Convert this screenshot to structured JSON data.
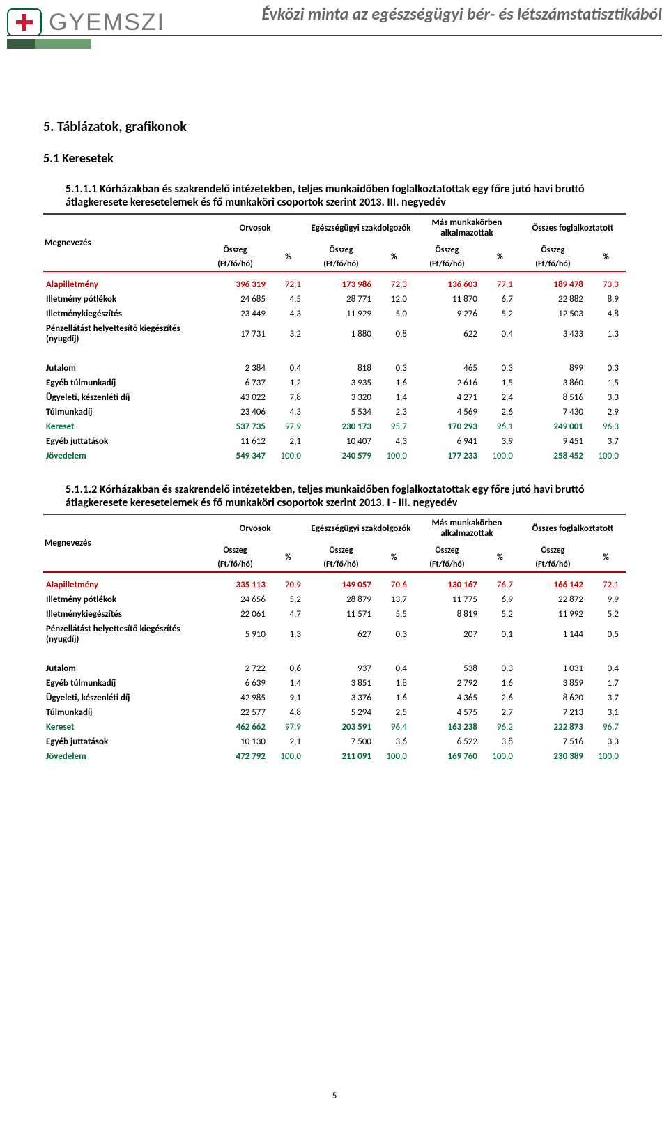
{
  "colors": {
    "highlight_red": "#c00000",
    "highlight_green": "#006838",
    "text_black": "#000000"
  },
  "header": {
    "logo_text": "GYEMSZI",
    "title": "Évközi minta az egészségügyi bér- és létszámstatisztikából"
  },
  "section_title": "5. Táblázatok, grafikonok",
  "sub_title": "5.1 Keresetek",
  "page_number": "5",
  "labels": {
    "megnevezes": "Megnevezés",
    "osszeg_unit": "(Ft/fő/hó)",
    "osszeg": "Összeg",
    "pct": "%",
    "col_orvosok": "Orvosok",
    "col_szakdolgozok": "Egészségügyi szakdolgozók",
    "col_mas": "Más munkakörben alkalmazottak",
    "col_osszes": "Összes foglalkoztatott"
  },
  "tables": [
    {
      "caption": "5.1.1.1 Kórházakban és szakrendelő intézetekben, teljes munkaidőben foglalkoztatottak egy főre jutó havi bruttó átlagkeresete keresetelemek és fő munkaköri csoportok szerint 2013. III. negyedév",
      "row_labels": [
        "Alapilletmény",
        "Illetmény pótlékok",
        "Illetménykiegészítés",
        "Pénzellátást helyettesítő kiegészítés (nyugdíj)",
        "Jutalom",
        "Egyéb túlmunkadíj",
        "Ügyeleti, készenléti díj",
        "Túlmunkadíj",
        "Kereset",
        "Egyéb juttatások",
        "Jövedelem"
      ],
      "highlight": [
        "red",
        "",
        "",
        "",
        "",
        "",
        "",
        "",
        "green",
        "",
        "green"
      ],
      "group1_first": [
        0
      ],
      "group1_last": [
        3
      ],
      "data": [
        [
          "396 319",
          "72,1",
          "173 986",
          "72,3",
          "136 603",
          "77,1",
          "189 478",
          "73,3"
        ],
        [
          "24 685",
          "4,5",
          "28 771",
          "12,0",
          "11 870",
          "6,7",
          "22 882",
          "8,9"
        ],
        [
          "23 449",
          "4,3",
          "11 929",
          "5,0",
          "9 276",
          "5,2",
          "12 503",
          "4,8"
        ],
        [
          "17 731",
          "3,2",
          "1 880",
          "0,8",
          "622",
          "0,4",
          "3 433",
          "1,3"
        ],
        [
          "2 384",
          "0,4",
          "818",
          "0,3",
          "465",
          "0,3",
          "899",
          "0,3"
        ],
        [
          "6 737",
          "1,2",
          "3 935",
          "1,6",
          "2 616",
          "1,5",
          "3 860",
          "1,5"
        ],
        [
          "43 022",
          "7,8",
          "3 320",
          "1,4",
          "4 271",
          "2,4",
          "8 516",
          "3,3"
        ],
        [
          "23 406",
          "4,3",
          "5 534",
          "2,3",
          "4 569",
          "2,6",
          "7 430",
          "2,9"
        ],
        [
          "537 735",
          "97,9",
          "230 173",
          "95,7",
          "170 293",
          "96,1",
          "249 001",
          "96,3"
        ],
        [
          "11 612",
          "2,1",
          "10 407",
          "4,3",
          "6 941",
          "3,9",
          "9 451",
          "3,7"
        ],
        [
          "549 347",
          "100,0",
          "240 579",
          "100,0",
          "177 233",
          "100,0",
          "258 452",
          "100,0"
        ]
      ]
    },
    {
      "caption": "5.1.1.2 Kórházakban és szakrendelő intézetekben, teljes munkaidőben foglalkoztatottak egy főre jutó havi bruttó átlagkeresete keresetelemek és fő munkaköri csoportok szerint 2013. I - III. negyedév",
      "row_labels": [
        "Alapilletmény",
        "Illetmény pótlékok",
        "Illetménykiegészítés",
        "Pénzellátást helyettesítő kiegészítés (nyugdíj)",
        "Jutalom",
        "Egyéb túlmunkadíj",
        "Ügyeleti, készenléti díj",
        "Túlmunkadíj",
        "Kereset",
        "Egyéb juttatások",
        "Jövedelem"
      ],
      "highlight": [
        "red",
        "",
        "",
        "",
        "",
        "",
        "",
        "",
        "green",
        "",
        "green"
      ],
      "group1_first": [
        0
      ],
      "group1_last": [
        3
      ],
      "data": [
        [
          "335 113",
          "70,9",
          "149 057",
          "70,6",
          "130 167",
          "76,7",
          "166 142",
          "72,1"
        ],
        [
          "24 656",
          "5,2",
          "28 879",
          "13,7",
          "11 775",
          "6,9",
          "22 872",
          "9,9"
        ],
        [
          "22 061",
          "4,7",
          "11 571",
          "5,5",
          "8 819",
          "5,2",
          "11 992",
          "5,2"
        ],
        [
          "5 910",
          "1,3",
          "627",
          "0,3",
          "207",
          "0,1",
          "1 144",
          "0,5"
        ],
        [
          "2 722",
          "0,6",
          "937",
          "0,4",
          "538",
          "0,3",
          "1 031",
          "0,4"
        ],
        [
          "6 639",
          "1,4",
          "3 851",
          "1,8",
          "2 792",
          "1,6",
          "3 859",
          "1,7"
        ],
        [
          "42 985",
          "9,1",
          "3 376",
          "1,6",
          "4 365",
          "2,6",
          "8 620",
          "3,7"
        ],
        [
          "22 577",
          "4,8",
          "5 294",
          "2,5",
          "4 575",
          "2,7",
          "7 213",
          "3,1"
        ],
        [
          "462 662",
          "97,9",
          "203 591",
          "96,4",
          "163 238",
          "96,2",
          "222 873",
          "96,7"
        ],
        [
          "10 130",
          "2,1",
          "7 500",
          "3,6",
          "6 522",
          "3,8",
          "7 516",
          "3,3"
        ],
        [
          "472 792",
          "100,0",
          "211 091",
          "100,0",
          "169 760",
          "100,0",
          "230 389",
          "100,0"
        ]
      ]
    }
  ]
}
